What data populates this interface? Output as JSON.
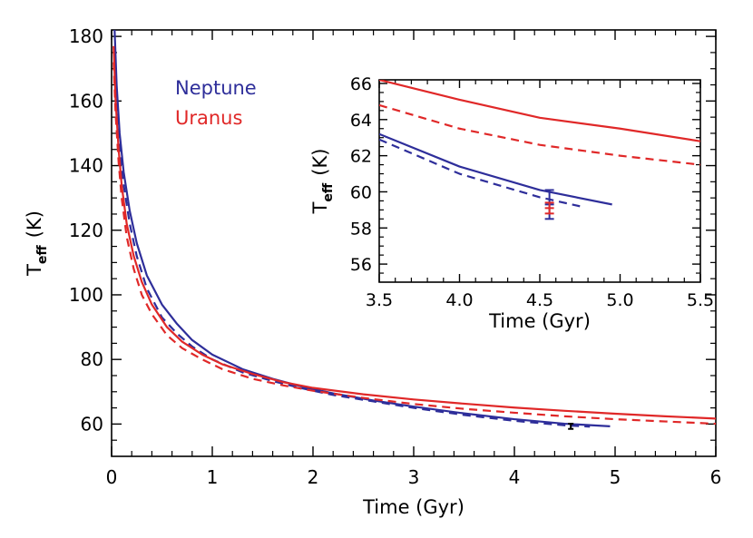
{
  "chart_data": [
    {
      "type": "line",
      "xlabel": "Time (Gyr)",
      "ylabel": "T",
      "ylabel_subscript": "eff",
      "ylabel_unit": "(K)",
      "xlim": [
        0,
        6
      ],
      "ylim": [
        50,
        182
      ],
      "xticks": [
        0,
        1,
        2,
        3,
        4,
        5,
        6
      ],
      "xtick_labels": [
        "0",
        "1",
        "2",
        "3",
        "4",
        "5",
        "6"
      ],
      "yticks": [
        60,
        80,
        100,
        120,
        140,
        160,
        180
      ],
      "ytick_labels": [
        "60",
        "80",
        "100",
        "120",
        "140",
        "160",
        "180"
      ],
      "grid": false,
      "legend": {
        "placement": "top-left",
        "entries": [
          "Neptune",
          "Uranus"
        ]
      },
      "series": [
        {
          "name": "Neptune",
          "color": "#2e2e9a",
          "dash": "solid",
          "x": [
            0.03,
            0.05,
            0.08,
            0.12,
            0.18,
            0.25,
            0.35,
            0.5,
            0.65,
            0.8,
            1.0,
            1.3,
            1.6,
            1.9,
            2.2,
            2.6,
            3.0,
            3.5,
            4.0,
            4.5,
            4.95
          ],
          "y": [
            182,
            165,
            150,
            138,
            126,
            116,
            106,
            97,
            91,
            86,
            81.5,
            77,
            74,
            71.5,
            69.5,
            67.3,
            65.4,
            63.3,
            61.5,
            60.1,
            59.3
          ]
        },
        {
          "name": "Neptune",
          "color": "#2e2e9a",
          "dash": "dashed",
          "x": [
            0.03,
            0.05,
            0.08,
            0.12,
            0.18,
            0.25,
            0.35,
            0.5,
            0.65,
            0.8,
            1.0,
            1.3,
            1.6,
            1.9,
            2.2,
            2.6,
            3.0,
            3.5,
            4.0,
            4.5,
            4.75
          ],
          "y": [
            172,
            158,
            145,
            134,
            122,
            112,
            102,
            93,
            88,
            84,
            80,
            76,
            73.3,
            71,
            69,
            67,
            65,
            62.8,
            61,
            59.6,
            59.2
          ]
        },
        {
          "name": "Uranus",
          "color": "#e02828",
          "dash": "solid",
          "x": [
            0.02,
            0.04,
            0.07,
            0.1,
            0.15,
            0.22,
            0.3,
            0.4,
            0.55,
            0.7,
            0.9,
            1.1,
            1.4,
            1.7,
            2.0,
            2.5,
            3.0,
            3.5,
            4.0,
            4.5,
            5.0,
            5.5,
            6.0
          ],
          "y": [
            177,
            160,
            145,
            134,
            122,
            112,
            104,
            97,
            90,
            85.5,
            81.5,
            78.5,
            75.5,
            73,
            71.2,
            69.2,
            67.6,
            66.3,
            65.1,
            64.1,
            63.2,
            62.4,
            61.7
          ]
        },
        {
          "name": "Uranus",
          "color": "#e02828",
          "dash": "dashed",
          "x": [
            0.02,
            0.04,
            0.07,
            0.1,
            0.15,
            0.22,
            0.3,
            0.4,
            0.55,
            0.7,
            0.9,
            1.1,
            1.4,
            1.7,
            2.0,
            2.5,
            3.0,
            3.5,
            4.0,
            4.5,
            5.0,
            5.5,
            6.0
          ],
          "y": [
            172,
            156,
            141,
            130,
            118,
            108,
            100,
            94,
            87.5,
            83.5,
            80,
            77,
            74,
            72,
            70.3,
            68.1,
            66.2,
            64.7,
            63.5,
            62.4,
            61.5,
            60.8,
            60.1
          ]
        }
      ],
      "observations": [
        {
          "name": "Neptune",
          "color": "#000000",
          "x": 4.56,
          "y": 59.3,
          "yerr": 0.8
        }
      ]
    },
    {
      "type": "line",
      "xlabel": "Time (Gyr)",
      "ylabel": "T",
      "ylabel_subscript": "eff",
      "ylabel_unit": "(K)",
      "xlim": [
        3.5,
        5.5
      ],
      "ylim": [
        55,
        66.2
      ],
      "xticks": [
        3.5,
        4.0,
        4.5,
        5.0,
        5.5
      ],
      "xtick_labels": [
        "3.5",
        "4.0",
        "4.5",
        "5.0",
        "5.5"
      ],
      "yticks": [
        56,
        58,
        60,
        62,
        64,
        66
      ],
      "ytick_labels": [
        "56",
        "58",
        "60",
        "62",
        "64",
        "66"
      ],
      "series": [
        {
          "name": "Uranus",
          "color": "#e02828",
          "dash": "solid",
          "x": [
            3.5,
            4.0,
            4.5,
            5.0,
            5.5
          ],
          "y": [
            66.2,
            65.1,
            64.1,
            63.5,
            62.8
          ]
        },
        {
          "name": "Uranus",
          "color": "#e02828",
          "dash": "dashed",
          "x": [
            3.5,
            4.0,
            4.5,
            5.0,
            5.5
          ],
          "y": [
            64.8,
            63.5,
            62.6,
            62.0,
            61.5
          ]
        },
        {
          "name": "Neptune",
          "color": "#2e2e9a",
          "dash": "solid",
          "x": [
            3.5,
            4.0,
            4.5,
            4.95
          ],
          "y": [
            63.2,
            61.4,
            60.1,
            59.3
          ]
        },
        {
          "name": "Neptune",
          "color": "#2e2e9a",
          "dash": "dashed",
          "x": [
            3.5,
            4.0,
            4.5,
            4.75
          ],
          "y": [
            62.9,
            61.0,
            59.7,
            59.2
          ]
        }
      ],
      "observations": [
        {
          "name": "Neptune",
          "color": "#2e2e9a",
          "x": 4.56,
          "y": 59.3,
          "yerr": 0.8
        },
        {
          "name": "Uranus",
          "color": "#e02828",
          "x": 4.56,
          "y": 59.1,
          "yerr": 0.3
        }
      ]
    }
  ]
}
